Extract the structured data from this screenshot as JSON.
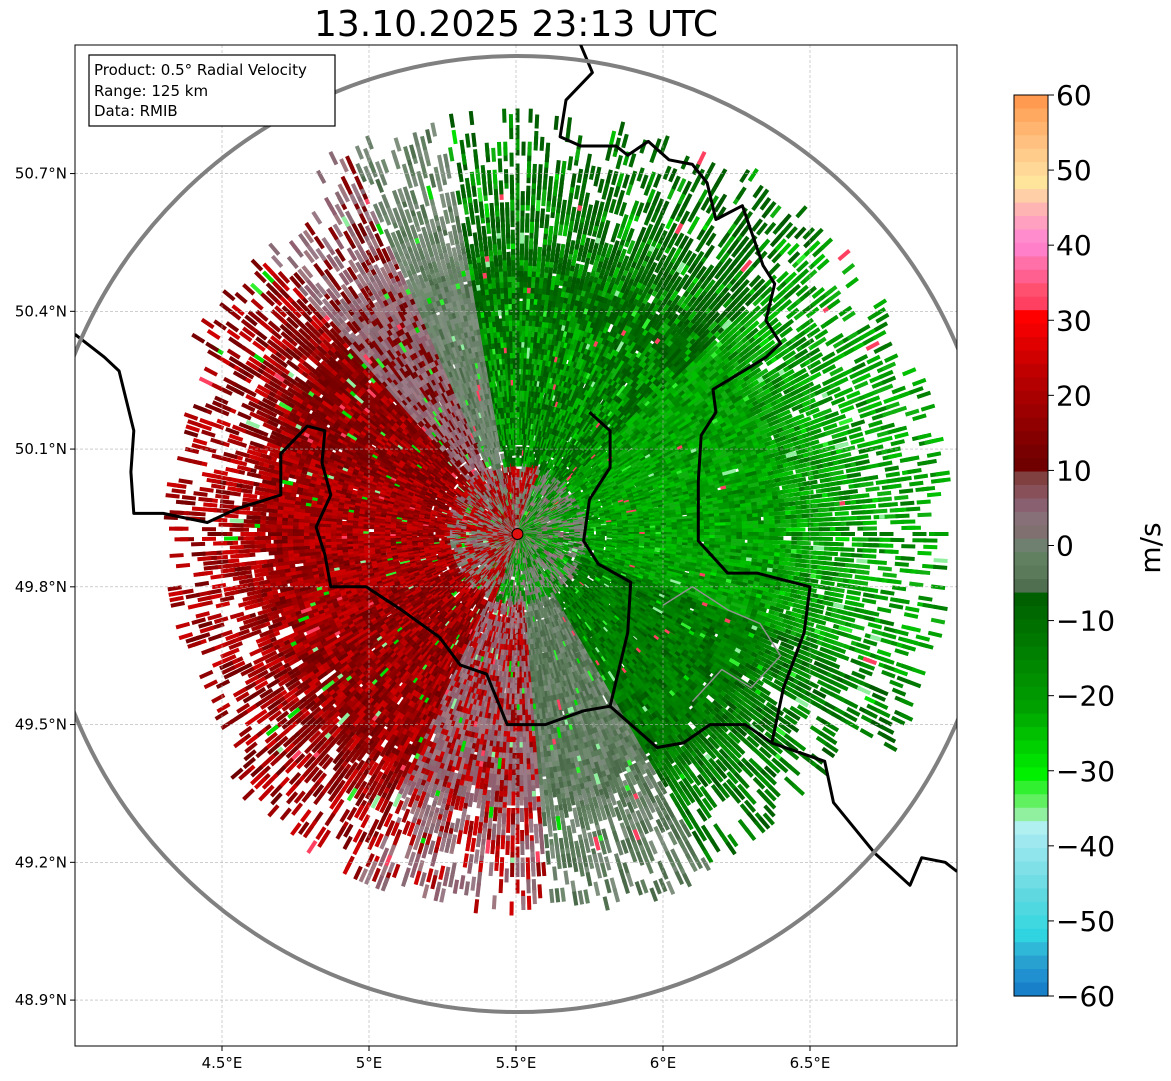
{
  "title": "13.10.2025 23:13 UTC",
  "info_box": {
    "product": "Product: 0.5° Radial Velocity",
    "range": "Range: 125 km",
    "data": "Data: RMIB"
  },
  "axes": {
    "lon_range": [
      4.0,
      7.0
    ],
    "lat_range": [
      48.8,
      50.98
    ],
    "x_ticks": [
      {
        "value": 4.5,
        "label": "4.5°E"
      },
      {
        "value": 5.0,
        "label": "5°E"
      },
      {
        "value": 5.5,
        "label": "5.5°E"
      },
      {
        "value": 6.0,
        "label": "6°E"
      },
      {
        "value": 6.5,
        "label": "6.5°E"
      }
    ],
    "y_ticks": [
      {
        "value": 50.7,
        "label": "50.7°N"
      },
      {
        "value": 50.4,
        "label": "50.4°N"
      },
      {
        "value": 50.1,
        "label": "50.1°N"
      },
      {
        "value": 49.8,
        "label": "49.8°N"
      },
      {
        "value": 49.5,
        "label": "49.5°N"
      },
      {
        "value": 49.2,
        "label": "49.2°N"
      },
      {
        "value": 48.9,
        "label": "48.9°N"
      }
    ]
  },
  "radar": {
    "lon": 5.505,
    "lat": 49.915,
    "range_km": 125,
    "marker_color": "#e01010"
  },
  "colorbar": {
    "label": "m/s",
    "min": -60,
    "max": 60,
    "ticks": [
      {
        "value": 60,
        "label": "60"
      },
      {
        "value": 50,
        "label": "50"
      },
      {
        "value": 40,
        "label": "40"
      },
      {
        "value": 30,
        "label": "30"
      },
      {
        "value": 20,
        "label": "20"
      },
      {
        "value": 10,
        "label": "10"
      },
      {
        "value": 0,
        "label": "0"
      },
      {
        "value": -10,
        "label": "−10"
      },
      {
        "value": -20,
        "label": "−20"
      },
      {
        "value": -30,
        "label": "−30"
      },
      {
        "value": -40,
        "label": "−40"
      },
      {
        "value": -50,
        "label": "−50"
      },
      {
        "value": -60,
        "label": "−60"
      }
    ],
    "colors_top_to_bottom": [
      "#ff9a50",
      "#ffa860",
      "#ffb470",
      "#ffc080",
      "#ffcc8c",
      "#ffd898",
      "#ffe49c",
      "#ffd0a8",
      "#ffb4b4",
      "#ffa0c0",
      "#ff8ccc",
      "#ff80c8",
      "#ff70a8",
      "#ff6090",
      "#ff5070",
      "#ff4060",
      "#ff0000",
      "#f00000",
      "#e00000",
      "#d00000",
      "#c00000",
      "#b40000",
      "#a80000",
      "#9c0000",
      "#900000",
      "#840000",
      "#780000",
      "#700000",
      "#804040",
      "#885058",
      "#886070",
      "#887078",
      "#807070",
      "#708070",
      "#608060",
      "#5a7a5a",
      "#506e50",
      "#006000",
      "#006800",
      "#007000",
      "#007800",
      "#008000",
      "#008800",
      "#009000",
      "#009800",
      "#00a000",
      "#00b000",
      "#00c000",
      "#00d000",
      "#00e000",
      "#00f000",
      "#30f030",
      "#60f060",
      "#90f0a0",
      "#b0f0f0",
      "#a0e8f0",
      "#90e4ec",
      "#80e0e8",
      "#70dce4",
      "#60d8e0",
      "#50d8e0",
      "#40d8e0",
      "#30d4e0",
      "#30b8d8",
      "#28a0d0",
      "#2090d0",
      "#1880c8"
    ]
  }
}
